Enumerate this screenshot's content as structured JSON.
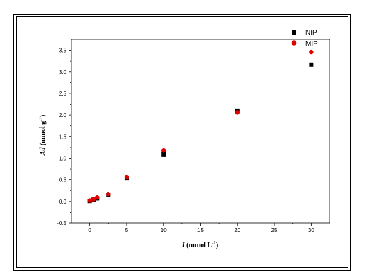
{
  "chart_data": {
    "type": "scatter",
    "title": "",
    "xlabel": "I (mmol L⁻¹)",
    "ylabel": "Ad (mmol g⁻¹)",
    "xlabel_parts": {
      "symbol": "I",
      "unit": " (mmol L",
      "sup": "-1",
      "close": ")"
    },
    "ylabel_parts": {
      "symbol": "Ad",
      "unit": " (mmol g",
      "sup": "-1",
      "close": ")"
    },
    "xlim": [
      -2.5,
      32.5
    ],
    "ylim": [
      -0.5,
      3.75
    ],
    "xticks": [
      0,
      5,
      10,
      15,
      20,
      25,
      30
    ],
    "yticks": [
      -0.5,
      0.0,
      0.5,
      1.0,
      1.5,
      2.0,
      2.5,
      3.0,
      3.5
    ],
    "xtick_labels": [
      "0",
      "5",
      "10",
      "15",
      "20",
      "25",
      "30"
    ],
    "ytick_labels": [
      "-0.5",
      "0.0",
      "0.5",
      "1.0",
      "1.5",
      "2.0",
      "2.5",
      "3.0",
      "3.5"
    ],
    "grid": false,
    "legend_position": "top-right",
    "series": [
      {
        "name": "NIP",
        "marker": "square",
        "color": "#000000",
        "points": [
          [
            0,
            0.01
          ],
          [
            0.5,
            0.04
          ],
          [
            1,
            0.07
          ],
          [
            2.5,
            0.15
          ],
          [
            5,
            0.54
          ],
          [
            10,
            1.09
          ],
          [
            20,
            2.1
          ],
          [
            30,
            3.16
          ]
        ]
      },
      {
        "name": "MIP",
        "marker": "circle",
        "color": "#e00000",
        "points": [
          [
            0,
            0.02
          ],
          [
            0.5,
            0.05
          ],
          [
            1,
            0.09
          ],
          [
            2.5,
            0.17
          ],
          [
            5,
            0.56
          ],
          [
            10,
            1.18
          ],
          [
            20,
            2.06
          ],
          [
            30,
            3.46
          ]
        ]
      }
    ]
  }
}
